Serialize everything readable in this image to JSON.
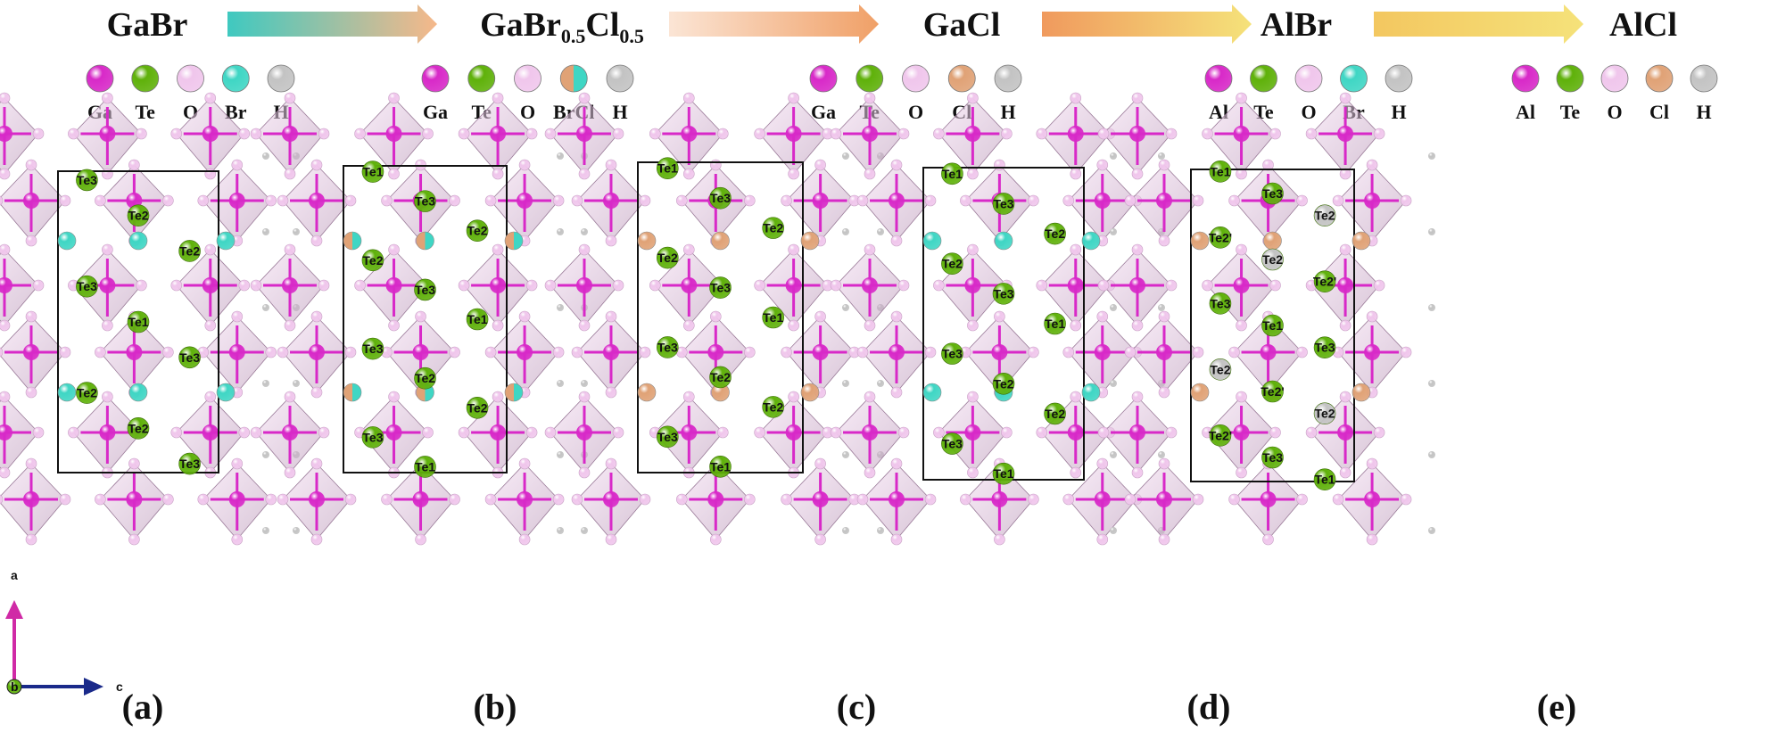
{
  "header": {
    "compounds": [
      {
        "base": "GaBr",
        "parts": []
      },
      {
        "base": "GaBr",
        "parts": [
          {
            "sub": "0.5"
          },
          {
            "text": "Cl"
          },
          {
            "sub": "0.5"
          }
        ]
      },
      {
        "base": "GaCl",
        "parts": []
      },
      {
        "base": "AlBr",
        "parts": []
      },
      {
        "base": "AlCl",
        "parts": []
      }
    ],
    "arrow_gradients": [
      [
        "#3fc9c0",
        "#f6b88a"
      ],
      [
        "#fbe5d5",
        "#f0a067"
      ],
      [
        "#f09a5e",
        "#f5e27a"
      ],
      [
        "#f3c760",
        "#f5e27a"
      ]
    ]
  },
  "colors": {
    "metal": "#d829c8",
    "te": "#5fb10a",
    "o": "#f0c6ec",
    "br": "#3fd6c4",
    "cl": "#e0a276",
    "h": "#c3c3c3",
    "octahedron": "#d9a6d6",
    "cell": "#111111"
  },
  "panels": [
    {
      "id": "a",
      "tag": "(a)",
      "legend": [
        "Ga",
        "Te",
        "O",
        "Br",
        "H"
      ],
      "halide": "br",
      "te": [
        "Te3",
        "Te2",
        "Te2",
        "Te3",
        "Te1",
        "Te3",
        "Te2",
        "Te2",
        "Te3"
      ]
    },
    {
      "id": "b",
      "tag": "(b)",
      "legend": [
        "Ga",
        "Te",
        "O",
        "BrCl",
        "H"
      ],
      "halide": "mix",
      "te": [
        "Te1",
        "Te3",
        "Te2",
        "Te2",
        "Te3",
        "Te1",
        "Te3",
        "Te2",
        "Te2",
        "Te3",
        "Te1"
      ]
    },
    {
      "id": "c",
      "tag": "(c)",
      "legend": [
        "Ga",
        "Te",
        "O",
        "Cl",
        "H"
      ],
      "halide": "cl",
      "te": [
        "Te1",
        "Te3",
        "Te2",
        "Te2",
        "Te3",
        "Te1",
        "Te3",
        "Te2",
        "Te2",
        "Te3",
        "Te1"
      ]
    },
    {
      "id": "d",
      "tag": "(d)",
      "legend": [
        "Al",
        "Te",
        "O",
        "Br",
        "H"
      ],
      "halide": "br",
      "te": [
        "Te1",
        "Te3",
        "Te2",
        "Te2",
        "Te3",
        "Te1",
        "Te3",
        "Te2",
        "Te2",
        "Te3",
        "Te1"
      ]
    },
    {
      "id": "e",
      "tag": "(e)",
      "legend": [
        "Al",
        "Te",
        "O",
        "Cl",
        "H"
      ],
      "halide": "cl",
      "te": [
        "Te1",
        "Te3",
        "Te2",
        "Te2'",
        "Te2",
        "Te2'",
        "Te3",
        "Te1",
        "Te3",
        "Te2",
        "Te2'",
        "Te2",
        "Te2'",
        "Te3",
        "Te1"
      ]
    }
  ],
  "axes": {
    "a": "a",
    "b": "b",
    "c": "c"
  }
}
